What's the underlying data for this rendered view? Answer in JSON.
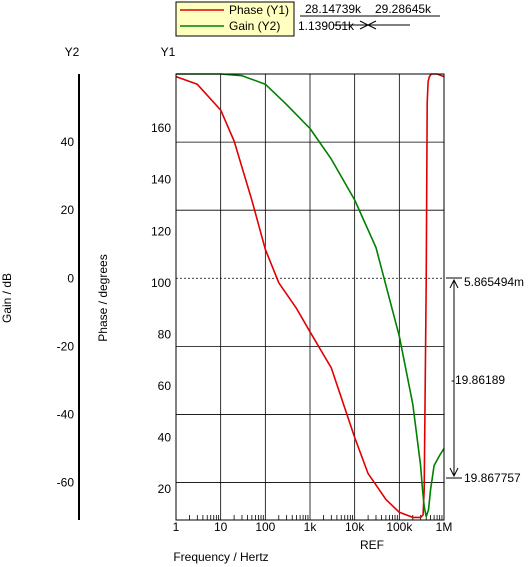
{
  "chart_data": {
    "type": "line",
    "xlabel": "Frequency / Hertz",
    "x_ref_label": "REF",
    "x_scale": "log",
    "x_ticks": [
      {
        "value": 1,
        "label": "1"
      },
      {
        "value": 10,
        "label": "10"
      },
      {
        "value": 100,
        "label": "100"
      },
      {
        "value": 1000,
        "label": "1k"
      },
      {
        "value": 10000,
        "label": "10k"
      },
      {
        "value": 100000,
        "label": "100k"
      },
      {
        "value": 1000000,
        "label": "1M"
      }
    ],
    "xlim": [
      1,
      1000000
    ],
    "y1": {
      "axis_name": "Y1",
      "label": "Phase / degrees",
      "ticks": [
        "20",
        "40",
        "60",
        "80",
        "100",
        "120",
        "140",
        "160"
      ],
      "tick_values": [
        20,
        40,
        60,
        80,
        100,
        120,
        140,
        160
      ],
      "ylim": [
        8,
        181
      ]
    },
    "y2": {
      "axis_name": "Y2",
      "label": "Gain / dB",
      "ticks": [
        "-60",
        "-40",
        "-20",
        "0",
        "20",
        "40"
      ],
      "tick_values": [
        -60,
        -40,
        -20,
        0,
        20,
        40
      ],
      "ylim": [
        -71,
        60
      ]
    },
    "series": [
      {
        "name": "Phase (Y1)",
        "axis": "y1",
        "color": "#e00000",
        "x": [
          1,
          3,
          10,
          20,
          50,
          100,
          200,
          500,
          1000,
          3000,
          10000,
          20000,
          50000,
          100000,
          200000,
          300000,
          340000,
          360000,
          400000,
          420000,
          440000,
          470000,
          520000,
          700000,
          1000000
        ],
        "y": [
          180,
          177,
          167,
          155,
          132,
          113,
          100,
          90,
          81,
          67,
          40,
          26,
          16,
          11,
          9,
          9,
          10,
          20,
          100,
          170,
          178,
          180,
          181,
          181,
          180
        ]
      },
      {
        "name": "Gain (Y2)",
        "axis": "y2",
        "color": "#008000",
        "x": [
          1,
          10,
          30,
          100,
          300,
          1000,
          3000,
          10000,
          30000,
          100000,
          200000,
          300000,
          330000,
          360000,
          400000,
          450000,
          500000,
          600000,
          800000,
          1000000
        ],
        "y": [
          60,
          60,
          59.5,
          57,
          51,
          44,
          35,
          23,
          9,
          -17,
          -37,
          -55,
          -62,
          -67,
          -70,
          -68,
          -62,
          -55,
          -52,
          -50
        ]
      }
    ],
    "legend": {
      "position": "top-left",
      "entries": [
        "Phase (Y1)",
        "Gain (Y2)"
      ]
    },
    "annotations": {
      "cursor_x_left": "28.14739k",
      "cursor_x_right": "29.28645k",
      "cursor_dx": "1.139051k",
      "marker_top_value": "5.865494m",
      "marker_delta": "-19.86189",
      "marker_bottom_value": "19.867757"
    }
  }
}
